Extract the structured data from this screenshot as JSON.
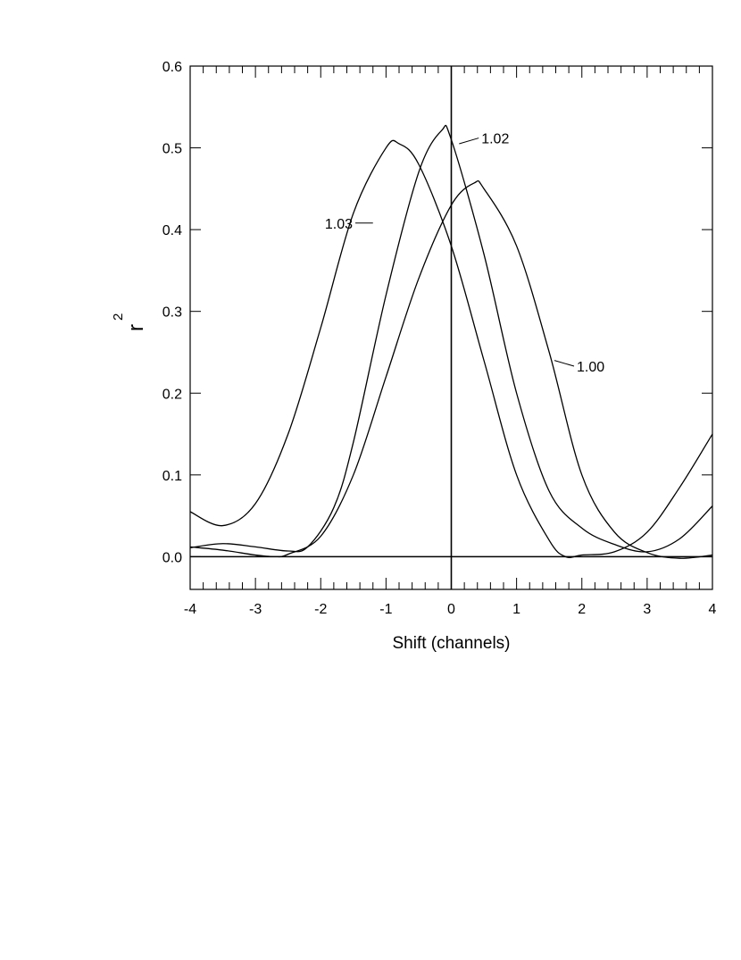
{
  "chart_data": {
    "type": "line",
    "xlabel": "Shift (channels)",
    "ylabel": "r",
    "ylabel_superscript": "2",
    "xlim": [
      -4,
      4
    ],
    "ylim": [
      -0.04,
      0.6
    ],
    "x_ticks": [
      -4,
      -3,
      -2,
      -1,
      0,
      1,
      2,
      3,
      4
    ],
    "x_tick_labels": [
      "-4",
      "-3",
      "-2",
      "-1",
      "0",
      "1",
      "2",
      "3",
      "4"
    ],
    "y_ticks": [
      0.0,
      0.1,
      0.2,
      0.3,
      0.4,
      0.5,
      0.6
    ],
    "y_tick_labels": [
      "0.0",
      "0.1",
      "0.2",
      "0.3",
      "0.4",
      "0.5",
      "0.6"
    ],
    "grid": false,
    "reference_lines": {
      "x": 0,
      "y": 0
    },
    "series": [
      {
        "name": "1.03",
        "x": [
          -4.0,
          -3.5,
          -3.0,
          -2.5,
          -2.0,
          -1.5,
          -1.0,
          -0.8,
          -0.5,
          0.0,
          0.5,
          1.0,
          1.5,
          1.75,
          2.0,
          2.5,
          3.0,
          3.5,
          4.0
        ],
        "y": [
          0.055,
          0.038,
          0.065,
          0.15,
          0.28,
          0.42,
          0.5,
          0.505,
          0.48,
          0.38,
          0.24,
          0.1,
          0.02,
          0.0,
          0.002,
          0.006,
          0.03,
          0.085,
          0.15
        ]
      },
      {
        "name": "1.02",
        "x": [
          -4.0,
          -3.5,
          -3.0,
          -2.5,
          -2.2,
          -1.8,
          -1.5,
          -1.0,
          -0.5,
          -0.15,
          0.0,
          0.5,
          1.0,
          1.5,
          2.0,
          2.5,
          3.0,
          3.5,
          4.0
        ],
        "y": [
          0.011,
          0.016,
          0.012,
          0.007,
          0.012,
          0.06,
          0.14,
          0.32,
          0.47,
          0.521,
          0.51,
          0.37,
          0.2,
          0.08,
          0.035,
          0.015,
          0.006,
          0.022,
          0.062
        ]
      },
      {
        "name": "1.00",
        "x": [
          -4.0,
          -3.5,
          -3.0,
          -2.7,
          -2.5,
          -2.0,
          -1.5,
          -1.0,
          -0.5,
          0.0,
          0.35,
          0.5,
          1.0,
          1.5,
          2.0,
          2.5,
          3.0,
          3.5,
          4.0
        ],
        "y": [
          0.012,
          0.008,
          0.002,
          0.0,
          0.003,
          0.025,
          0.1,
          0.22,
          0.34,
          0.43,
          0.457,
          0.45,
          0.38,
          0.25,
          0.1,
          0.03,
          0.005,
          -0.002,
          0.002
        ]
      }
    ],
    "annotations": [
      {
        "text": "1.03",
        "series": "1.03"
      },
      {
        "text": "1.02",
        "series": "1.02"
      },
      {
        "text": "1.00",
        "series": "1.00"
      }
    ]
  }
}
